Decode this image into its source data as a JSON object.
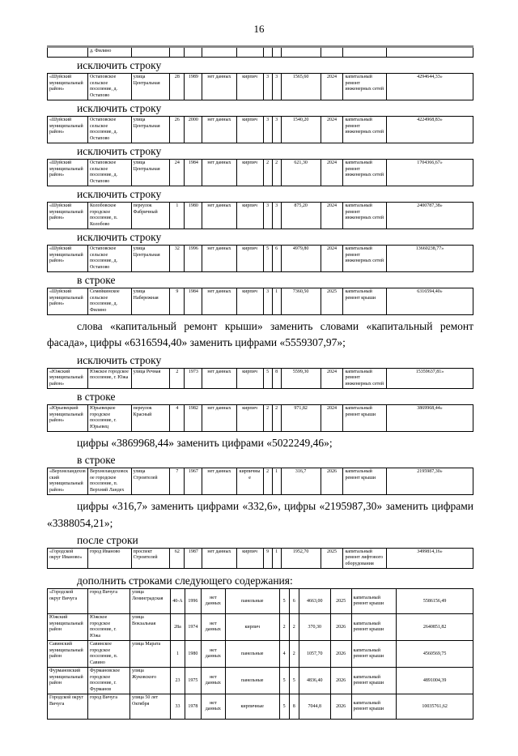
{
  "page": {
    "number": "16"
  },
  "doc": {
    "sections": [
      {
        "type": "table",
        "rows": [
          [
            "",
            "д. Филино",
            "",
            "",
            "",
            "",
            "",
            "",
            "",
            "",
            "",
            "",
            ""
          ]
        ]
      },
      {
        "type": "heading",
        "text": "исключить строку"
      },
      {
        "type": "table",
        "rows": [
          [
            "«Шуйский муниципальный район»",
            "Остаповское сельское поселение, д. Остапово",
            "улица Центральная",
            "28",
            "1989",
            "нет данных",
            "кирпич",
            "3",
            "3",
            "1565,60",
            "2024",
            "капитальный ремонт инженерных сетей",
            "4294644,33»"
          ]
        ]
      },
      {
        "type": "heading",
        "text": "исключить строку"
      },
      {
        "type": "table",
        "rows": [
          [
            "«Шуйский муниципальный район»",
            "Остаповское сельское поселение, д. Остапово",
            "улица Центральная",
            "26",
            "2000",
            "нет данных",
            "кирпич",
            "3",
            "3",
            "1540,20",
            "2024",
            "капитальный ремонт инженерных сетей",
            "4224968,83»"
          ]
        ]
      },
      {
        "type": "heading",
        "text": "исключить строку"
      },
      {
        "type": "table",
        "rows": [
          [
            "«Шуйский муниципальный район»",
            "Остаповское сельское поселение, д. Остапово",
            "улица Центральная",
            "24",
            "1984",
            "нет данных",
            "кирпич",
            "2",
            "2",
            "621,30",
            "2024",
            "капитальный ремонт инженерных сетей",
            "1704366,67»"
          ]
        ]
      },
      {
        "type": "heading",
        "text": "исключить строку"
      },
      {
        "type": "table",
        "rows": [
          [
            "«Шуйский муниципальный район»",
            "Колобовское городское поселение, п. Колобово",
            "переулок Фабричный",
            "1",
            "1980",
            "нет данных",
            "кирпич",
            "3",
            "3",
            "875,20",
            "2024",
            "капитальный ремонт инженерных сетей",
            "2400787,38»"
          ]
        ]
      },
      {
        "type": "heading",
        "text": "исключить строку"
      },
      {
        "type": "table",
        "rows": [
          [
            "«Шуйский муниципальный район»",
            "Остаповское сельское поселение, д. Остапово",
            "улица Центральная",
            "32",
            "1996",
            "нет данных",
            "кирпич",
            "5",
            "6",
            "4979,80",
            "2024",
            "капитальный ремонт инженерных сетей",
            "13660238,77»"
          ]
        ]
      },
      {
        "type": "heading",
        "text": "в строке"
      },
      {
        "type": "table",
        "rows": [
          [
            "«Шуйский муниципальный район»",
            "Семейкинское сельское поселение, д. Филино",
            "улица Набережная",
            "9",
            "1984",
            "нет данных",
            "кирпич",
            "3",
            "1",
            "7360,50",
            "2025",
            "капитальный ремонт крыши",
            "6316594,40»"
          ]
        ]
      },
      {
        "type": "paragraph",
        "text": "слова «капитальный ремонт крыши» заменить словами «капитальный ремонт фасада», цифры «6316594,40» заменить цифрами «5559307,97»;"
      },
      {
        "type": "heading",
        "text": "исключить строку"
      },
      {
        "type": "table",
        "rows": [
          [
            "«Южский муниципальный район»",
            "Южское городское поселение, г. Южа",
            "улица Речная",
            "2",
            "1973",
            "нет данных",
            "кирпич",
            "5",
            "8",
            "5599,30",
            "2024",
            "капитальный ремонт инженерных сетей",
            "15359637,81»"
          ]
        ]
      },
      {
        "type": "heading",
        "text": "в строке"
      },
      {
        "type": "table",
        "rows": [
          [
            "«Юрьевецкий муниципальный район»",
            "Юрьевецкое городское поселение, г. Юрьевец",
            "переулок Красный",
            "4",
            "1982",
            "нет данных",
            "кирпич",
            "2",
            "2",
            "971,82",
            "2024",
            "капитальный ремонт крыши",
            "3869968,44»"
          ]
        ]
      },
      {
        "type": "paragraph",
        "text": "цифры «3869968,44» заменить цифрами «5022249,46»;"
      },
      {
        "type": "heading",
        "text": "в строке"
      },
      {
        "type": "table",
        "rows": [
          [
            "«Верхнеландеховский муниципальный район»",
            "Верхнеландеховское городское поселение, п. Верхний Ландех",
            "улица Строителей",
            "7",
            "1967",
            "нет данных",
            "кирпичные",
            "2",
            "1",
            "316,7",
            "2026",
            "капитальный ремонт крыши",
            "2195987,30»"
          ]
        ]
      },
      {
        "type": "paragraph",
        "text": "цифры «316,7» заменить цифрами «332,6», цифры «2195987,30» заменить цифрами «3388054,21»;"
      },
      {
        "type": "heading",
        "text": "после строки"
      },
      {
        "type": "table",
        "rows": [
          [
            "«Городской округ Иваново»",
            "город Иваново",
            "проспект Строителей",
            "62",
            "1987",
            "нет данных",
            "кирпич",
            "9",
            "1",
            "1952,70",
            "2025",
            "капитальный ремонт лифтового оборудования",
            "3499814,16»"
          ]
        ]
      },
      {
        "type": "heading",
        "text": "дополнить строками следующего содержания:"
      },
      {
        "type": "table",
        "rows": [
          [
            "«Городской округ Вичуга",
            "город Вичуга",
            "улица Ленинградская",
            "40-А",
            "1996",
            "нет данных",
            "панельные",
            "5",
            "6",
            "4663,00",
            "2025",
            "капитальный ремонт крыши",
            "5586156,49"
          ],
          [
            "Южский муниципальный район",
            "Южское городское поселение, г. Южа",
            "улица Вокзальная",
            "28а",
            "1974",
            "нет данных",
            "кирпич",
            "2",
            "2",
            "370,30",
            "2026",
            "капитальный ремонт крыши",
            "2640851,82"
          ],
          [
            "Савинский муниципальный район",
            "Савинское городское поселение, п. Савино",
            "улица Марата",
            "1",
            "1980",
            "нет данных",
            "панельные",
            "4",
            "2",
            "1057,70",
            "2026",
            "капитальный ремонт крыши",
            "4560569,75"
          ],
          [
            "Фурмановский муниципальный район",
            "Фурмановское городское поселение, г. Фурманов",
            "улица Жуковского",
            "23",
            "1975",
            "нет данных",
            "панельные",
            "5",
            "5",
            "4836,40",
            "2026",
            "капитальный ремонт крыши",
            "4891004,39"
          ],
          [
            "Городской округ Вичуга",
            "город Вичуга",
            "улица 50 лет Октября",
            "33",
            "1978",
            "нет данных",
            "кирпичные",
            "5",
            "8",
            "7044,8",
            "2026",
            "капитальный ремонт крыши",
            "10035761,62"
          ]
        ]
      }
    ]
  }
}
